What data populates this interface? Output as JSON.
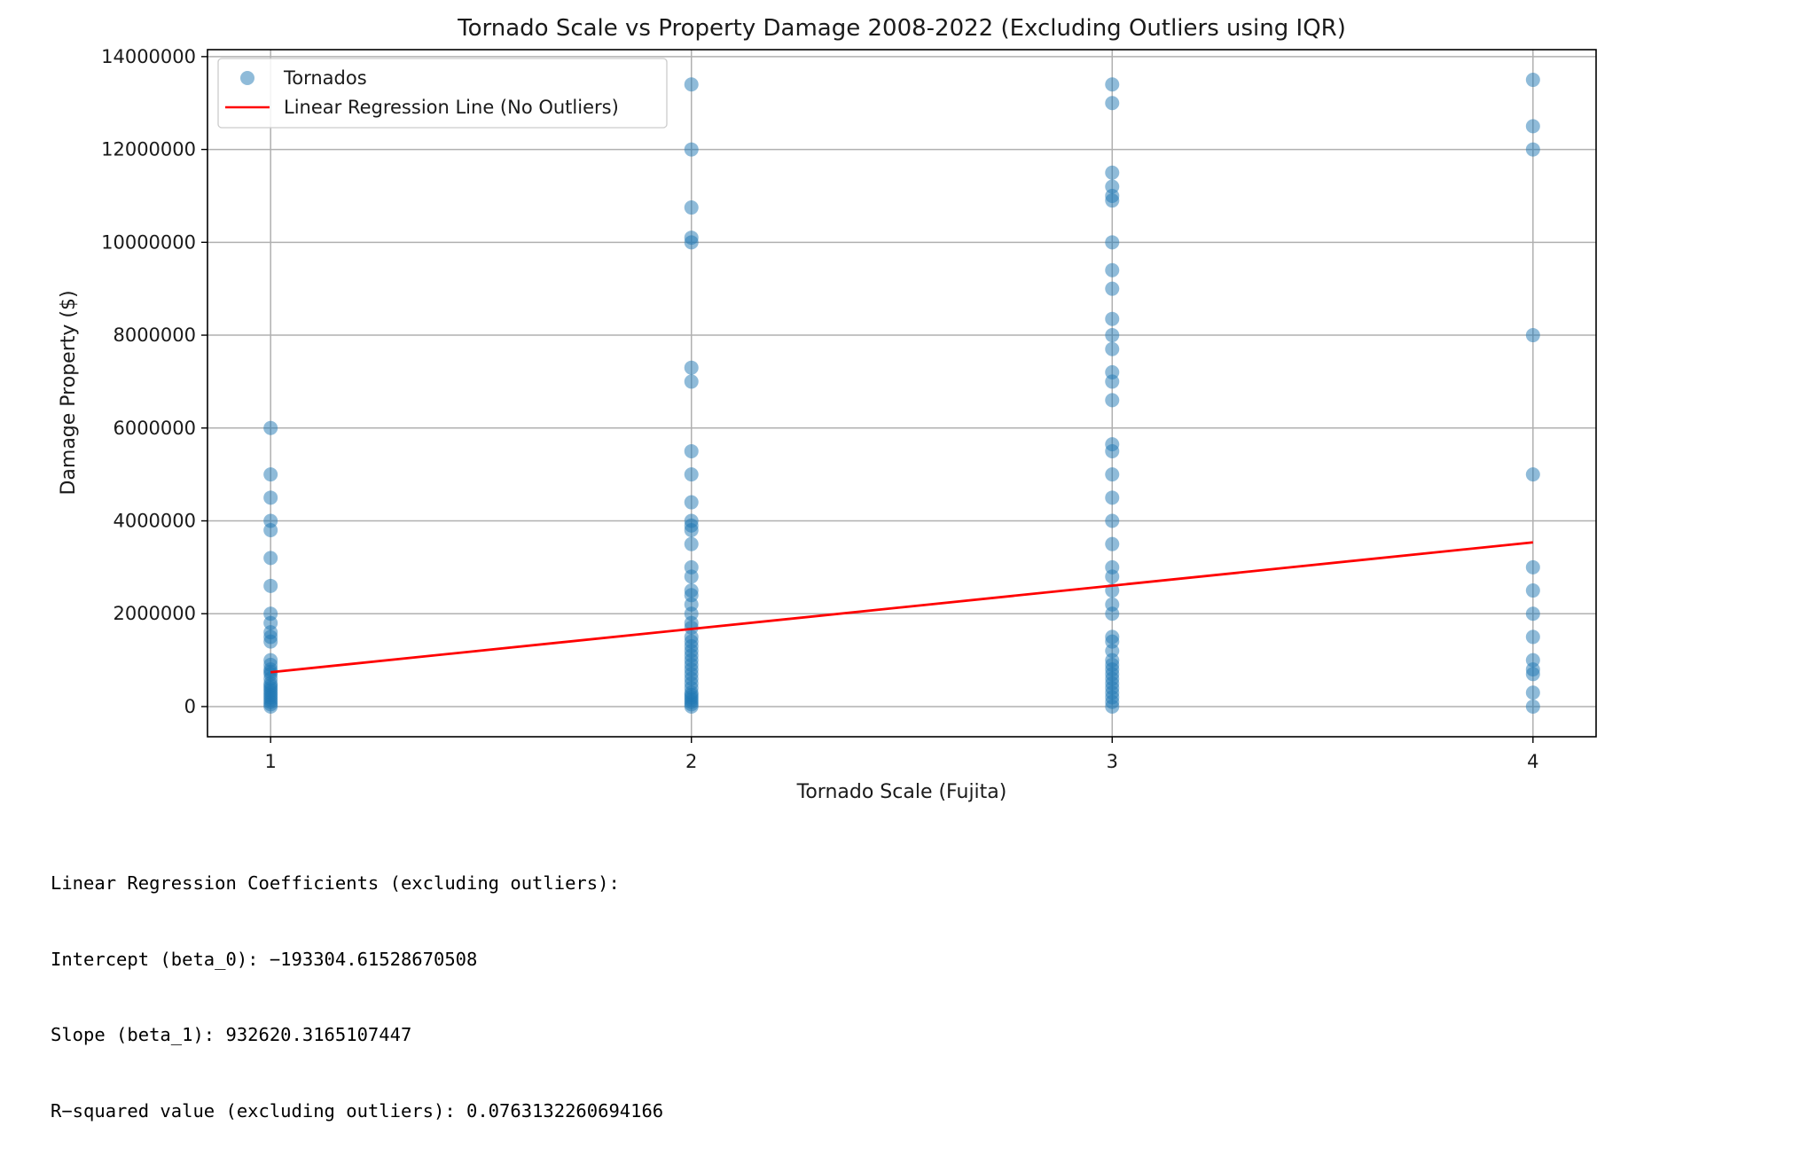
{
  "chart_data": {
    "type": "scatter",
    "title": "Tornado Scale vs Property Damage 2008-2022 (Excluding Outliers using IQR)",
    "xlabel": "Tornado Scale (Fujita)",
    "ylabel": "Damage Property ($)",
    "xlim": [
      0.85,
      4.15
    ],
    "ylim": [
      -650000,
      14150000
    ],
    "x_ticks": [
      1,
      2,
      3,
      4
    ],
    "x_tick_labels": [
      "1",
      "2",
      "3",
      "4"
    ],
    "y_ticks": [
      0,
      2000000,
      4000000,
      6000000,
      8000000,
      10000000,
      12000000,
      14000000
    ],
    "y_tick_labels": [
      "0",
      "2000000",
      "4000000",
      "6000000",
      "8000000",
      "10000000",
      "12000000",
      "14000000"
    ],
    "grid": true,
    "legend_position": "upper-left",
    "series": [
      {
        "name": "Tornados",
        "type": "scatter",
        "color": "#1f77b4",
        "alpha": 0.5,
        "points": [
          [
            1,
            0
          ],
          [
            1,
            50000
          ],
          [
            1,
            100000
          ],
          [
            1,
            150000
          ],
          [
            1,
            200000
          ],
          [
            1,
            250000
          ],
          [
            1,
            300000
          ],
          [
            1,
            350000
          ],
          [
            1,
            400000
          ],
          [
            1,
            450000
          ],
          [
            1,
            500000
          ],
          [
            1,
            600000
          ],
          [
            1,
            700000
          ],
          [
            1,
            750000
          ],
          [
            1,
            800000
          ],
          [
            1,
            900000
          ],
          [
            1,
            1000000
          ],
          [
            1,
            1400000
          ],
          [
            1,
            1500000
          ],
          [
            1,
            1600000
          ],
          [
            1,
            1800000
          ],
          [
            1,
            2000000
          ],
          [
            1,
            2600000
          ],
          [
            1,
            3200000
          ],
          [
            1,
            3800000
          ],
          [
            1,
            4000000
          ],
          [
            1,
            4500000
          ],
          [
            1,
            5000000
          ],
          [
            1,
            6000000
          ],
          [
            2,
            0
          ],
          [
            2,
            50000
          ],
          [
            2,
            100000
          ],
          [
            2,
            150000
          ],
          [
            2,
            200000
          ],
          [
            2,
            250000
          ],
          [
            2,
            300000
          ],
          [
            2,
            400000
          ],
          [
            2,
            500000
          ],
          [
            2,
            600000
          ],
          [
            2,
            700000
          ],
          [
            2,
            800000
          ],
          [
            2,
            900000
          ],
          [
            2,
            1000000
          ],
          [
            2,
            1100000
          ],
          [
            2,
            1200000
          ],
          [
            2,
            1300000
          ],
          [
            2,
            1400000
          ],
          [
            2,
            1500000
          ],
          [
            2,
            1700000
          ],
          [
            2,
            1800000
          ],
          [
            2,
            2000000
          ],
          [
            2,
            2200000
          ],
          [
            2,
            2400000
          ],
          [
            2,
            2500000
          ],
          [
            2,
            2800000
          ],
          [
            2,
            3000000
          ],
          [
            2,
            3500000
          ],
          [
            2,
            3800000
          ],
          [
            2,
            3900000
          ],
          [
            2,
            4000000
          ],
          [
            2,
            4400000
          ],
          [
            2,
            5000000
          ],
          [
            2,
            5500000
          ],
          [
            2,
            7000000
          ],
          [
            2,
            7300000
          ],
          [
            2,
            10000000
          ],
          [
            2,
            10100000
          ],
          [
            2,
            10750000
          ],
          [
            2,
            12000000
          ],
          [
            2,
            13400000
          ],
          [
            3,
            0
          ],
          [
            3,
            100000
          ],
          [
            3,
            200000
          ],
          [
            3,
            300000
          ],
          [
            3,
            400000
          ],
          [
            3,
            500000
          ],
          [
            3,
            600000
          ],
          [
            3,
            700000
          ],
          [
            3,
            800000
          ],
          [
            3,
            900000
          ],
          [
            3,
            1000000
          ],
          [
            3,
            1200000
          ],
          [
            3,
            1400000
          ],
          [
            3,
            1500000
          ],
          [
            3,
            2000000
          ],
          [
            3,
            2200000
          ],
          [
            3,
            2500000
          ],
          [
            3,
            2800000
          ],
          [
            3,
            3000000
          ],
          [
            3,
            3500000
          ],
          [
            3,
            4000000
          ],
          [
            3,
            4500000
          ],
          [
            3,
            5000000
          ],
          [
            3,
            5500000
          ],
          [
            3,
            5650000
          ],
          [
            3,
            6600000
          ],
          [
            3,
            7000000
          ],
          [
            3,
            7200000
          ],
          [
            3,
            7700000
          ],
          [
            3,
            8000000
          ],
          [
            3,
            8350000
          ],
          [
            3,
            9000000
          ],
          [
            3,
            9400000
          ],
          [
            3,
            10000000
          ],
          [
            3,
            10900000
          ],
          [
            3,
            11000000
          ],
          [
            3,
            11200000
          ],
          [
            3,
            11500000
          ],
          [
            3,
            13000000
          ],
          [
            3,
            13400000
          ],
          [
            4,
            0
          ],
          [
            4,
            300000
          ],
          [
            4,
            700000
          ],
          [
            4,
            800000
          ],
          [
            4,
            1000000
          ],
          [
            4,
            1500000
          ],
          [
            4,
            2000000
          ],
          [
            4,
            2500000
          ],
          [
            4,
            3000000
          ],
          [
            4,
            5000000
          ],
          [
            4,
            8000000
          ],
          [
            4,
            12000000
          ],
          [
            4,
            12500000
          ],
          [
            4,
            13500000
          ]
        ]
      },
      {
        "name": "Linear Regression Line (No Outliers)",
        "type": "line",
        "color": "#ff0000",
        "x": [
          1,
          4
        ],
        "y": [
          739315.7,
          3537176.65
        ]
      }
    ]
  },
  "output_lines": [
    "Linear Regression Coefficients (excluding outliers):",
    "Intercept (beta_0): −193304.61528670508",
    "Slope (beta_1): 932620.3165107447",
    "R−squared value (excluding outliers): 0.0763132260694166"
  ]
}
